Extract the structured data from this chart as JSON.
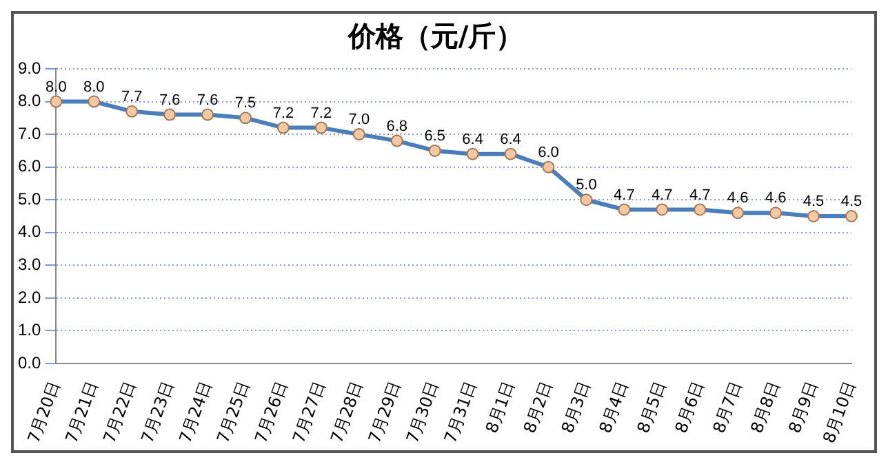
{
  "chart_data": {
    "type": "line",
    "title": "价格（元/斤）",
    "categories": [
      "7月20日",
      "7月21日",
      "7月22日",
      "7月23日",
      "7月24日",
      "7月25日",
      "7月26日",
      "7月27日",
      "7月28日",
      "7月29日",
      "7月30日",
      "7月31日",
      "8月1日",
      "8月2日",
      "8月3日",
      "8月4日",
      "8月5日",
      "8月6日",
      "8月7日",
      "8月8日",
      "8月9日",
      "8月10日"
    ],
    "series": [
      {
        "color": "#4a7ebb",
        "values": [
          8.0,
          8.0,
          7.7,
          7.6,
          7.6,
          7.5,
          7.2,
          7.2,
          7.0,
          6.8,
          6.5,
          6.4,
          6.4,
          6.0,
          5.0,
          4.7,
          4.7,
          4.7,
          4.6,
          4.6,
          4.5,
          4.5
        ],
        "value_labels": [
          "8.0",
          "8.0",
          "7.7",
          "7.6",
          "7.6",
          "7.5",
          "7.2",
          "7.2",
          "7.0",
          "6.8",
          "6.5",
          "6.4",
          "6.4",
          "6.0",
          "5.0",
          "4.7",
          "4.7",
          "4.7",
          "4.6",
          "4.6",
          "4.5",
          "4.5"
        ]
      }
    ],
    "ylim": [
      0,
      9
    ],
    "yticks": [
      {
        "value": 0,
        "label": "0.0"
      },
      {
        "value": 1,
        "label": "1.0"
      },
      {
        "value": 2,
        "label": "2.0"
      },
      {
        "value": 3,
        "label": "3.0"
      },
      {
        "value": 4,
        "label": "4.0"
      },
      {
        "value": 5,
        "label": "5.0"
      },
      {
        "value": 6,
        "label": "6.0"
      },
      {
        "value": 7,
        "label": "7.0"
      },
      {
        "value": 8,
        "label": "8.0"
      },
      {
        "value": 9,
        "label": "9.0"
      }
    ],
    "grid": "y",
    "legend": false,
    "marker": "circle",
    "line_style": "solid"
  }
}
